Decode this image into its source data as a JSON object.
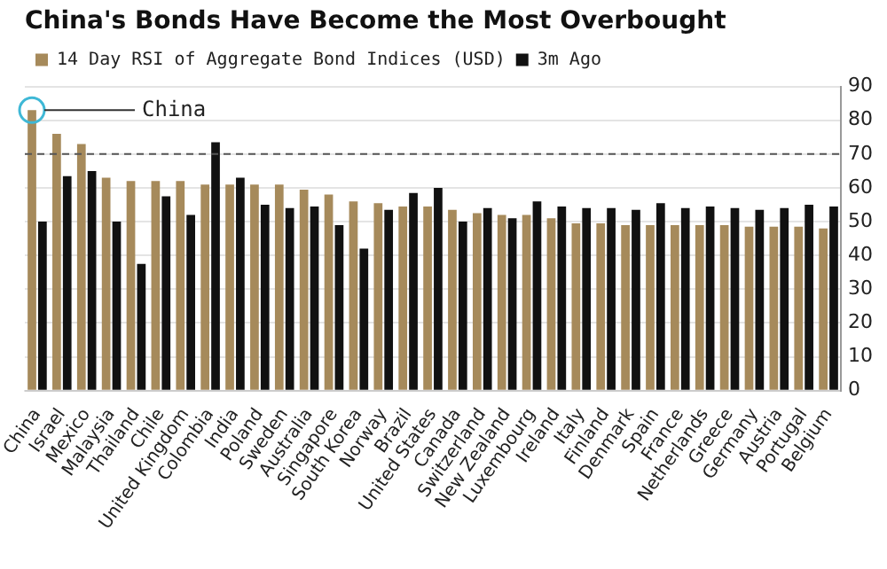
{
  "chart_data": {
    "type": "bar",
    "title": "China's Bonds Have Become the Most Overbought",
    "categories": [
      "China",
      "Israel",
      "Mexico",
      "Malaysia",
      "Thailand",
      "Chile",
      "United Kingdom",
      "Colombia",
      "India",
      "Poland",
      "Sweden",
      "Australia",
      "Singapore",
      "South Korea",
      "Norway",
      "Brazil",
      "United States",
      "Canada",
      "Switzerland",
      "New Zealand",
      "Luxembourg",
      "Ireland",
      "Italy",
      "Finland",
      "Denmark",
      "Spain",
      "France",
      "Netherlands",
      "Greece",
      "Germany",
      "Austria",
      "Portugal",
      "Belgium"
    ],
    "series": [
      {
        "name": "14 Day RSI of Aggregate Bond Indices (USD)",
        "color": "#a68a5b",
        "values": [
          83,
          76,
          73,
          63,
          62,
          62,
          62,
          61,
          61,
          61,
          61,
          59.5,
          58,
          56,
          55.5,
          54.5,
          54.5,
          53.5,
          52.5,
          52,
          52,
          51,
          49.5,
          49.5,
          49,
          49,
          49,
          49,
          49,
          48.5,
          48.5,
          48.5,
          48
        ]
      },
      {
        "name": "3m Ago",
        "color": "#111111",
        "values": [
          50,
          63.5,
          65,
          50,
          37.5,
          57.5,
          52,
          73.5,
          63,
          55,
          54,
          54.5,
          49,
          42,
          53.5,
          58.5,
          60,
          50,
          54,
          51,
          56,
          54.5,
          54,
          54,
          53.5,
          55.5,
          54,
          54.5,
          54,
          53.5,
          54,
          55,
          54.5
        ]
      }
    ],
    "ylim": [
      0,
      90
    ],
    "yticks": [
      0,
      10,
      20,
      30,
      40,
      50,
      60,
      70,
      80,
      90
    ],
    "grid": "y",
    "legend": "top left",
    "ref_lines": [
      {
        "axis": "y",
        "value": 70,
        "color": "#555555",
        "line_style": "dashed"
      }
    ],
    "annotations": [
      {
        "text": "China",
        "x": "China",
        "y": 83
      }
    ]
  }
}
